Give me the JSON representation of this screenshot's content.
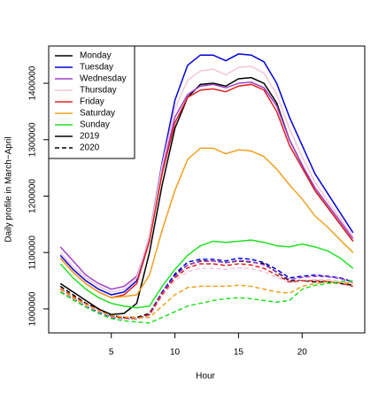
{
  "chart_data": {
    "type": "line",
    "x_label": "Hour",
    "y_label": "Daily profile in March−April",
    "x": [
      1,
      2,
      3,
      4,
      5,
      6,
      7,
      8,
      9,
      10,
      11,
      12,
      13,
      14,
      15,
      16,
      17,
      18,
      19,
      20,
      21,
      22,
      23,
      24
    ],
    "xlim": [
      0.08,
      24.92
    ],
    "xticks": [
      5,
      10,
      15,
      20
    ],
    "ylim": [
      957500,
      1466000
    ],
    "yticks": [
      1000000,
      1100000,
      1200000,
      1300000,
      1400000
    ],
    "legend": "top-left",
    "line_styles": [
      {
        "name": "2019",
        "dash": "solid"
      },
      {
        "name": "2020",
        "dash": "dashed"
      }
    ],
    "series": [
      {
        "name": "Monday",
        "color": "#000000",
        "values": [
          [
            1045000,
            1030000,
            1015000,
            1000000,
            990000,
            992000,
            1010000,
            1100000,
            1220000,
            1320000,
            1375000,
            1398000,
            1400000,
            1395000,
            1408000,
            1410000,
            1400000,
            1365000,
            1300000,
            1255000,
            1210000,
            1180000,
            1150000,
            1120000
          ],
          [
            1040000,
            1025000,
            1010000,
            1000000,
            988000,
            985000,
            985000,
            992000,
            1030000,
            1060000,
            1078000,
            1085000,
            1085000,
            1082000,
            1085000,
            1083000,
            1080000,
            1065000,
            1050000,
            1050000,
            1048000,
            1048000,
            1045000,
            1042000
          ]
        ]
      },
      {
        "name": "Tuesday",
        "color": "#0000dd",
        "values": [
          [
            1095000,
            1070000,
            1050000,
            1035000,
            1025000,
            1030000,
            1050000,
            1130000,
            1260000,
            1370000,
            1432000,
            1450000,
            1450000,
            1440000,
            1452000,
            1450000,
            1438000,
            1400000,
            1340000,
            1290000,
            1240000,
            1205000,
            1170000,
            1135000
          ],
          [
            1030000,
            1018000,
            1005000,
            995000,
            985000,
            983000,
            982000,
            990000,
            1030000,
            1062000,
            1083000,
            1088000,
            1088000,
            1085000,
            1090000,
            1088000,
            1082000,
            1070000,
            1055000,
            1058000,
            1060000,
            1058000,
            1055000,
            1048000
          ]
        ]
      },
      {
        "name": "Wednesday",
        "color": "#a040c8",
        "values": [
          [
            1110000,
            1085000,
            1060000,
            1045000,
            1035000,
            1040000,
            1058000,
            1125000,
            1245000,
            1340000,
            1380000,
            1395000,
            1398000,
            1392000,
            1400000,
            1402000,
            1392000,
            1360000,
            1300000,
            1255000,
            1215000,
            1185000,
            1155000,
            1125000
          ],
          [
            1035000,
            1020000,
            1008000,
            998000,
            987000,
            984000,
            983000,
            990000,
            1028000,
            1058000,
            1078000,
            1084000,
            1085000,
            1082000,
            1086000,
            1084000,
            1078000,
            1066000,
            1052000,
            1056000,
            1058000,
            1057000,
            1054000,
            1047000
          ]
        ]
      },
      {
        "name": "Thursday",
        "color": "#f4c6d6",
        "values": [
          [
            1100000,
            1075000,
            1055000,
            1040000,
            1030000,
            1035000,
            1055000,
            1130000,
            1255000,
            1355000,
            1405000,
            1422000,
            1425000,
            1415000,
            1428000,
            1430000,
            1418000,
            1380000,
            1320000,
            1270000,
            1225000,
            1192000,
            1160000,
            1128000
          ],
          [
            1033000,
            1019000,
            1006000,
            996000,
            986000,
            983000,
            982000,
            988000,
            1022000,
            1050000,
            1066000,
            1072000,
            1072000,
            1070000,
            1073000,
            1071000,
            1066000,
            1056000,
            1046000,
            1050000,
            1052000,
            1052000,
            1050000,
            1045000
          ]
        ]
      },
      {
        "name": "Friday",
        "color": "#e02020",
        "values": [
          [
            1090000,
            1065000,
            1045000,
            1030000,
            1020000,
            1025000,
            1045000,
            1120000,
            1240000,
            1330000,
            1375000,
            1388000,
            1390000,
            1385000,
            1395000,
            1398000,
            1388000,
            1350000,
            1290000,
            1250000,
            1210000,
            1180000,
            1150000,
            1120000
          ],
          [
            1036000,
            1022000,
            1009000,
            998000,
            987000,
            984000,
            983000,
            990000,
            1026000,
            1055000,
            1073000,
            1080000,
            1080000,
            1077000,
            1080000,
            1078000,
            1072000,
            1060000,
            1048000,
            1050000,
            1050000,
            1049000,
            1046000,
            1040000
          ]
        ]
      },
      {
        "name": "Saturday",
        "color": "#f0a020",
        "values": [
          [
            1090000,
            1065000,
            1045000,
            1030000,
            1020000,
            1022000,
            1025000,
            1060000,
            1140000,
            1210000,
            1265000,
            1285000,
            1285000,
            1275000,
            1282000,
            1280000,
            1270000,
            1248000,
            1220000,
            1195000,
            1165000,
            1145000,
            1122000,
            1100000
          ],
          [
            1035000,
            1020000,
            1008000,
            997000,
            988000,
            986000,
            984000,
            985000,
            1005000,
            1025000,
            1038000,
            1040000,
            1040000,
            1040000,
            1042000,
            1040000,
            1035000,
            1030000,
            1028000,
            1040000,
            1045000,
            1048000,
            1047000,
            1045000
          ]
        ]
      },
      {
        "name": "Sunday",
        "color": "#20e020",
        "values": [
          [
            1080000,
            1055000,
            1035000,
            1020000,
            1010000,
            1005000,
            1002000,
            1005000,
            1040000,
            1070000,
            1095000,
            1112000,
            1120000,
            1118000,
            1120000,
            1122000,
            1118000,
            1112000,
            1110000,
            1115000,
            1110000,
            1103000,
            1090000,
            1072000
          ],
          [
            1030000,
            1016000,
            1003000,
            992000,
            983000,
            979000,
            977000,
            975000,
            985000,
            995000,
            1005000,
            1010000,
            1015000,
            1018000,
            1020000,
            1018000,
            1015000,
            1012000,
            1015000,
            1035000,
            1042000,
            1045000,
            1048000,
            1050000
          ]
        ]
      }
    ]
  }
}
